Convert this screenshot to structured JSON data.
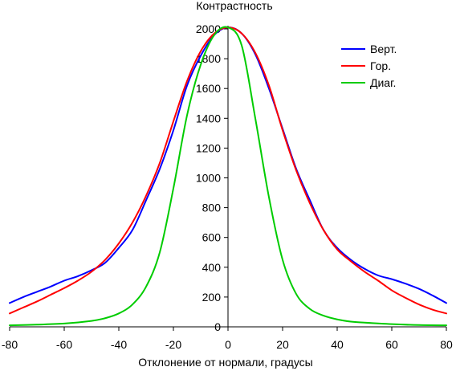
{
  "chart_data": {
    "type": "line",
    "title": "Контрастность",
    "xlabel": "Отклонение от нормали, градусы",
    "ylabel": "",
    "xlim": [
      -80,
      80
    ],
    "ylim": [
      0,
      2000
    ],
    "x_ticks": [
      -80,
      -60,
      -40,
      -20,
      0,
      20,
      40,
      60,
      80
    ],
    "y_ticks": [
      0,
      200,
      400,
      600,
      800,
      1000,
      1200,
      1400,
      1600,
      1800,
      2000
    ],
    "grid": false,
    "legend_position": "top-right",
    "series": [
      {
        "name": "Верт.",
        "color": "#0000ff",
        "x": [
          -80,
          -75,
          -70,
          -65,
          -60,
          -55,
          -50,
          -45,
          -40,
          -35,
          -30,
          -25,
          -20,
          -15,
          -10,
          -5,
          0,
          5,
          10,
          15,
          20,
          25,
          30,
          35,
          40,
          45,
          50,
          55,
          60,
          65,
          70,
          75,
          80
        ],
        "y": [
          160,
          200,
          235,
          270,
          310,
          340,
          380,
          430,
          530,
          650,
          850,
          1060,
          1320,
          1620,
          1820,
          1960,
          2010,
          1970,
          1830,
          1600,
          1330,
          1060,
          850,
          650,
          530,
          450,
          390,
          345,
          320,
          290,
          255,
          210,
          160
        ]
      },
      {
        "name": "Гор.",
        "color": "#ff0000",
        "x": [
          -80,
          -75,
          -70,
          -65,
          -60,
          -55,
          -50,
          -45,
          -40,
          -35,
          -30,
          -25,
          -20,
          -15,
          -10,
          -5,
          0,
          5,
          10,
          15,
          20,
          25,
          30,
          35,
          40,
          45,
          50,
          55,
          60,
          65,
          70,
          75,
          80
        ],
        "y": [
          90,
          130,
          170,
          215,
          260,
          310,
          370,
          450,
          560,
          700,
          880,
          1100,
          1380,
          1650,
          1850,
          1970,
          2010,
          1970,
          1840,
          1620,
          1320,
          1050,
          830,
          650,
          520,
          440,
          370,
          310,
          245,
          195,
          150,
          115,
          90
        ]
      },
      {
        "name": "Диаг.",
        "color": "#00cc00",
        "x": [
          -80,
          -70,
          -60,
          -50,
          -45,
          -40,
          -35,
          -30,
          -25,
          -20,
          -15,
          -10,
          -5,
          0,
          5,
          10,
          15,
          20,
          25,
          30,
          35,
          40,
          45,
          50,
          60,
          70,
          80
        ],
        "y": [
          10,
          15,
          22,
          40,
          58,
          90,
          150,
          270,
          500,
          930,
          1420,
          1760,
          1960,
          2010,
          1890,
          1400,
          870,
          450,
          220,
          120,
          75,
          50,
          35,
          28,
          18,
          12,
          10
        ]
      }
    ]
  }
}
